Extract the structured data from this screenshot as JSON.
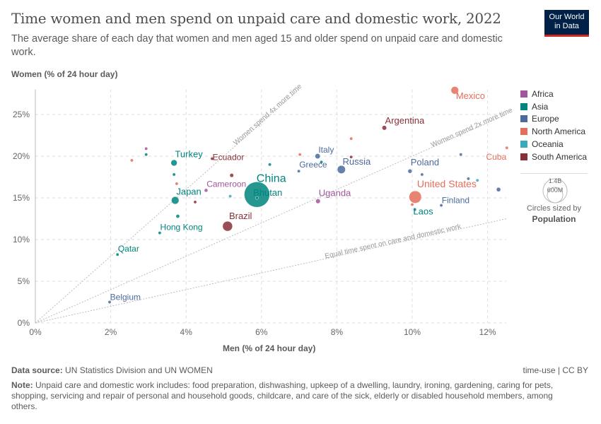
{
  "title": "Time women and men spend on unpaid care and domestic work, 2022",
  "subtitle": "The average share of each day that women and men aged 15 and older spend on unpaid care and domestic work.",
  "logo": {
    "line1": "Our World",
    "line2": "in Data"
  },
  "footer": {
    "source_label": "Data source:",
    "source": "UN Statistics Division and UN WOMEN",
    "right": "time-use | CC BY",
    "note_label": "Note:",
    "note": "Unpaid care and domestic work includes: food preparation, dishwashing, upkeep of a dwelling, laundry, ironing, gardening, caring for pets, shopping, servicing and repair of personal and household goods, childcare, and care of the sick, elderly or disabled household members, among others."
  },
  "size_legend": {
    "large": "1.4B",
    "small": "600M",
    "caption": "Circles sized by",
    "variable": "Population"
  },
  "chart_data": {
    "type": "scatter",
    "xlabel": "Men (% of 24 hour day)",
    "ylabel": "Women (% of 24 hour day)",
    "xlim": [
      0,
      12.5
    ],
    "ylim": [
      0,
      28
    ],
    "xticks": [
      "0%",
      "2%",
      "4%",
      "6%",
      "8%",
      "10%",
      "12%"
    ],
    "yticks": [
      "0%",
      "5%",
      "10%",
      "15%",
      "20%",
      "25%"
    ],
    "grid": true,
    "legend_position": "right",
    "regions": [
      {
        "name": "Africa",
        "color": "#a2559c"
      },
      {
        "name": "Asia",
        "color": "#00847e"
      },
      {
        "name": "Europe",
        "color": "#4c6a9c"
      },
      {
        "name": "North America",
        "color": "#e56e5a"
      },
      {
        "name": "Oceania",
        "color": "#38aaba"
      },
      {
        "name": "South America",
        "color": "#883039"
      }
    ],
    "reference_lines": [
      {
        "label": "Equal time spent on care and domestic work",
        "ratio": 1
      },
      {
        "label": "Women spend 2x more time",
        "ratio": 2
      },
      {
        "label": "Women spend 4x more time",
        "ratio": 4
      }
    ],
    "points": [
      {
        "label": "Mexico",
        "region": "North America",
        "x": 11.13,
        "y": 27.9,
        "pop": 128
      },
      {
        "label": "Argentina",
        "region": "South America",
        "x": 9.26,
        "y": 23.4,
        "pop": 46
      },
      {
        "label": "",
        "region": "North America",
        "x": 8.38,
        "y": 22.1,
        "pop": 5
      },
      {
        "label": "Cuba",
        "region": "North America",
        "x": 12.51,
        "y": 21.0,
        "pop": 11
      },
      {
        "label": "",
        "region": "Africa",
        "x": 2.94,
        "y": 20.9,
        "pop": 15
      },
      {
        "label": "",
        "region": "Asia",
        "x": 2.94,
        "y": 20.2,
        "pop": 3
      },
      {
        "label": "",
        "region": "North America",
        "x": 2.56,
        "y": 19.5,
        "pop": 7
      },
      {
        "label": "Turkey",
        "region": "Asia",
        "x": 3.68,
        "y": 19.2,
        "pop": 85
      },
      {
        "label": "Ecuador",
        "region": "South America",
        "x": 4.69,
        "y": 19.7,
        "pop": 18
      },
      {
        "label": "",
        "region": "Asia",
        "x": 6.22,
        "y": 19.0,
        "pop": 5
      },
      {
        "label": "",
        "region": "North America",
        "x": 7.02,
        "y": 20.2,
        "pop": 6
      },
      {
        "label": "Italy",
        "region": "Europe",
        "x": 7.49,
        "y": 20.0,
        "pop": 59
      },
      {
        "label": "",
        "region": "South America",
        "x": 8.38,
        "y": 19.9,
        "pop": 4
      },
      {
        "label": "",
        "region": "Asia",
        "x": 7.59,
        "y": 19.3,
        "pop": 4
      },
      {
        "label": "",
        "region": "Europe",
        "x": 11.29,
        "y": 20.2,
        "pop": 4
      },
      {
        "label": "",
        "region": "Asia",
        "x": 3.68,
        "y": 17.8,
        "pop": 4
      },
      {
        "label": "",
        "region": "South America",
        "x": 5.21,
        "y": 17.7,
        "pop": 33
      },
      {
        "label": "Greece",
        "region": "Europe",
        "x": 6.99,
        "y": 18.2,
        "pop": 10
      },
      {
        "label": "Russia",
        "region": "Europe",
        "x": 8.12,
        "y": 18.4,
        "pop": 144
      },
      {
        "label": "Poland",
        "region": "Europe",
        "x": 9.94,
        "y": 18.2,
        "pop": 38
      },
      {
        "label": "",
        "region": "Europe",
        "x": 10.26,
        "y": 17.8,
        "pop": 5
      },
      {
        "label": "",
        "region": "Europe",
        "x": 11.49,
        "y": 17.3,
        "pop": 5
      },
      {
        "label": "",
        "region": "Oceania",
        "x": 11.73,
        "y": 17.1,
        "pop": 10
      },
      {
        "label": "",
        "region": "Europe",
        "x": 12.29,
        "y": 16.0,
        "pop": 40
      },
      {
        "label": "",
        "region": "North America",
        "x": 3.75,
        "y": 16.7,
        "pop": 4
      },
      {
        "label": "Cameroon",
        "region": "Africa",
        "x": 4.53,
        "y": 15.9,
        "pop": 28
      },
      {
        "label": "",
        "region": "Oceania",
        "x": 5.17,
        "y": 15.2,
        "pop": 5
      },
      {
        "label": "China",
        "region": "Asia",
        "x": 5.88,
        "y": 15.4,
        "pop": 1410
      },
      {
        "label": "Bhutan",
        "region": "Asia",
        "x": 5.88,
        "y": 15.0,
        "pop": 1
      },
      {
        "label": "Japan",
        "region": "Asia",
        "x": 3.71,
        "y": 14.7,
        "pop": 125
      },
      {
        "label": "",
        "region": "South America",
        "x": 4.24,
        "y": 14.5,
        "pop": 4
      },
      {
        "label": "Uganda",
        "region": "Africa",
        "x": 7.5,
        "y": 14.6,
        "pop": 47
      },
      {
        "label": "United States",
        "region": "North America",
        "x": 10.08,
        "y": 15.1,
        "pop": 333
      },
      {
        "label": "",
        "region": "North America",
        "x": 10.0,
        "y": 14.2,
        "pop": 5
      },
      {
        "label": "Laos",
        "region": "Asia",
        "x": 10.07,
        "y": 13.6,
        "pop": 7
      },
      {
        "label": "Finland",
        "region": "Europe",
        "x": 10.77,
        "y": 14.1,
        "pop": 6
      },
      {
        "label": "",
        "region": "Asia",
        "x": 3.78,
        "y": 12.8,
        "pop": 30
      },
      {
        "label": "Brazil",
        "region": "South America",
        "x": 5.1,
        "y": 11.6,
        "pop": 215
      },
      {
        "label": "Hong Kong",
        "region": "Asia",
        "x": 3.3,
        "y": 10.8,
        "pop": 7
      },
      {
        "label": "Qatar",
        "region": "Asia",
        "x": 2.18,
        "y": 8.2,
        "pop": 3
      },
      {
        "label": "Belgium",
        "region": "Europe",
        "x": 1.97,
        "y": 2.5,
        "pop": 12
      }
    ]
  }
}
